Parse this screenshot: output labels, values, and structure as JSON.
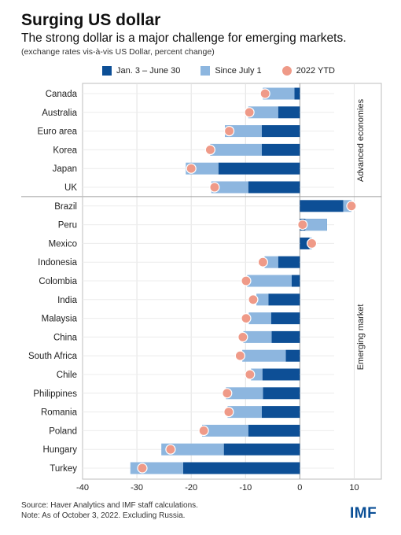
{
  "title": "Surging US dollar",
  "subtitle": "The strong dollar is a major challenge for emerging markets.",
  "note": "(exchange rates vis-à-vis US Dollar, percent change)",
  "source": "Source: Haver Analytics and IMF staff calculations.",
  "footnote": "Note: As of October 3, 2022. Excluding Russia.",
  "logo": "IMF",
  "colors": {
    "dark": "#0d4f96",
    "light": "#8db6df",
    "dot": "#ef9a88"
  },
  "chart_data": {
    "type": "bar",
    "orientation": "horizontal",
    "xlim": [
      -40,
      15
    ],
    "xticks": [
      -40,
      -30,
      -20,
      -10,
      0,
      10
    ],
    "grid": true,
    "legend_position": "top",
    "series": [
      {
        "name": "Jan. 3 – June 30",
        "kind": "bar"
      },
      {
        "name": "Since July 1",
        "kind": "bar"
      },
      {
        "name": "2022 YTD",
        "kind": "dot"
      }
    ],
    "groups": [
      "Advanced economies",
      "Emerging market"
    ],
    "rows": [
      {
        "country": "Canada",
        "group": 0,
        "h1": -1.0,
        "since": -5.8,
        "ytd": -6.4
      },
      {
        "country": "Australia",
        "group": 0,
        "h1": -4.0,
        "since": -5.5,
        "ytd": -9.3
      },
      {
        "country": "Euro area",
        "group": 0,
        "h1": -7.0,
        "since": -6.8,
        "ytd": -13.0
      },
      {
        "country": "Korea",
        "group": 0,
        "h1": -7.0,
        "since": -9.5,
        "ytd": -16.5
      },
      {
        "country": "Japan",
        "group": 0,
        "h1": -15.0,
        "since": -6.0,
        "ytd": -20.0
      },
      {
        "country": "UK",
        "group": 0,
        "h1": -9.5,
        "since": -6.8,
        "ytd": -15.7
      },
      {
        "country": "Brazil",
        "group": 1,
        "h1": 8.0,
        "since": 1.5,
        "ytd": 9.5
      },
      {
        "country": "Peru",
        "group": 1,
        "h1": 5.0,
        "since": -4.0,
        "ytd": 0.5
      },
      {
        "country": "Mexico",
        "group": 1,
        "h1": 1.8,
        "since": 0.4,
        "ytd": 2.2
      },
      {
        "country": "Indonesia",
        "group": 1,
        "h1": -4.0,
        "since": -2.5,
        "ytd": -6.8
      },
      {
        "country": "Colombia",
        "group": 1,
        "h1": -1.5,
        "since": -8.2,
        "ytd": -9.9
      },
      {
        "country": "India",
        "group": 1,
        "h1": -5.8,
        "since": -2.2,
        "ytd": -8.6
      },
      {
        "country": "Malaysia",
        "group": 1,
        "h1": -5.3,
        "since": -4.1,
        "ytd": -9.9
      },
      {
        "country": "China",
        "group": 1,
        "h1": -5.2,
        "since": -5.2,
        "ytd": -10.5
      },
      {
        "country": "South Africa",
        "group": 1,
        "h1": -2.6,
        "since": -8.0,
        "ytd": -11.0
      },
      {
        "country": "Chile",
        "group": 1,
        "h1": -6.9,
        "since": -2.1,
        "ytd": -9.2
      },
      {
        "country": "Philippines",
        "group": 1,
        "h1": -6.8,
        "since": -6.8,
        "ytd": -13.4
      },
      {
        "country": "Romania",
        "group": 1,
        "h1": -7.0,
        "since": -6.3,
        "ytd": -13.1
      },
      {
        "country": "Poland",
        "group": 1,
        "h1": -9.5,
        "since": -8.5,
        "ytd": -17.7
      },
      {
        "country": "Hungary",
        "group": 1,
        "h1": -14.0,
        "since": -11.5,
        "ytd": -23.8
      },
      {
        "country": "Turkey",
        "group": 1,
        "h1": -21.5,
        "since": -9.7,
        "ytd": -29.0
      }
    ]
  }
}
